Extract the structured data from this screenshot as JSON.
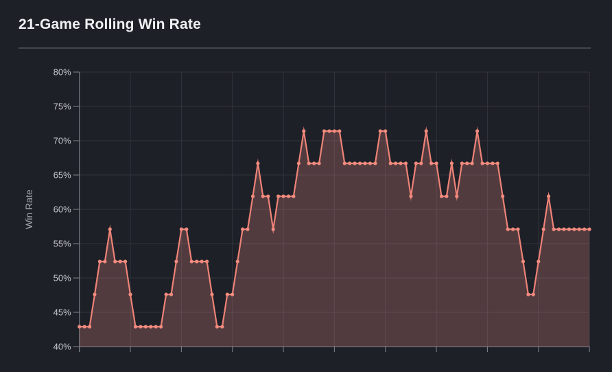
{
  "header": {
    "title": "21-Game Rolling Win Rate"
  },
  "chart": {
    "colors": {
      "background": "#1e2027",
      "line": "#ee8377",
      "marker": "#f08b7e",
      "area_fill": "rgba(233,140,136,0.26)",
      "gridline": "#31343d",
      "axis": "#81848c",
      "tick_label": "#c5c8ce",
      "axis_title": "#a3a6ad",
      "title_text": "#f0f1f4",
      "divider": "#43464e"
    }
  },
  "chart_data": {
    "type": "area",
    "title": "21-Game Rolling Win Rate",
    "xlabel": "",
    "ylabel": "Win Rate",
    "ylim": [
      40,
      80
    ],
    "ytick_step": 5,
    "ytick_labels": [
      "80%",
      "75%",
      "70%",
      "65%",
      "60%",
      "55%",
      "50%",
      "45%",
      "40%"
    ],
    "x_axis_labels_visible": false,
    "x_tick_interval": 10,
    "grid": true,
    "legend": "none",
    "marker": "circle",
    "rolling_window": 21,
    "unit": "%",
    "values": [
      42.9,
      42.9,
      42.9,
      47.6,
      52.4,
      52.4,
      57.1,
      52.4,
      52.4,
      52.4,
      47.6,
      42.9,
      42.9,
      42.9,
      42.9,
      42.9,
      42.9,
      47.6,
      47.6,
      52.4,
      57.1,
      57.1,
      52.4,
      52.4,
      52.4,
      52.4,
      47.6,
      42.9,
      42.9,
      47.6,
      47.6,
      52.4,
      57.1,
      57.1,
      61.9,
      66.7,
      61.9,
      61.9,
      57.1,
      61.9,
      61.9,
      61.9,
      61.9,
      66.7,
      71.4,
      66.7,
      66.7,
      66.7,
      71.4,
      71.4,
      71.4,
      71.4,
      66.7,
      66.7,
      66.7,
      66.7,
      66.7,
      66.7,
      66.7,
      71.4,
      71.4,
      66.7,
      66.7,
      66.7,
      66.7,
      61.9,
      66.7,
      66.7,
      71.4,
      66.7,
      66.7,
      61.9,
      61.9,
      66.7,
      61.9,
      66.7,
      66.7,
      66.7,
      71.4,
      66.7,
      66.7,
      66.7,
      66.7,
      61.9,
      57.1,
      57.1,
      57.1,
      52.4,
      47.6,
      47.6,
      52.4,
      57.1,
      61.9,
      57.1,
      57.1,
      57.1,
      57.1,
      57.1,
      57.1,
      57.1,
      57.1
    ]
  }
}
